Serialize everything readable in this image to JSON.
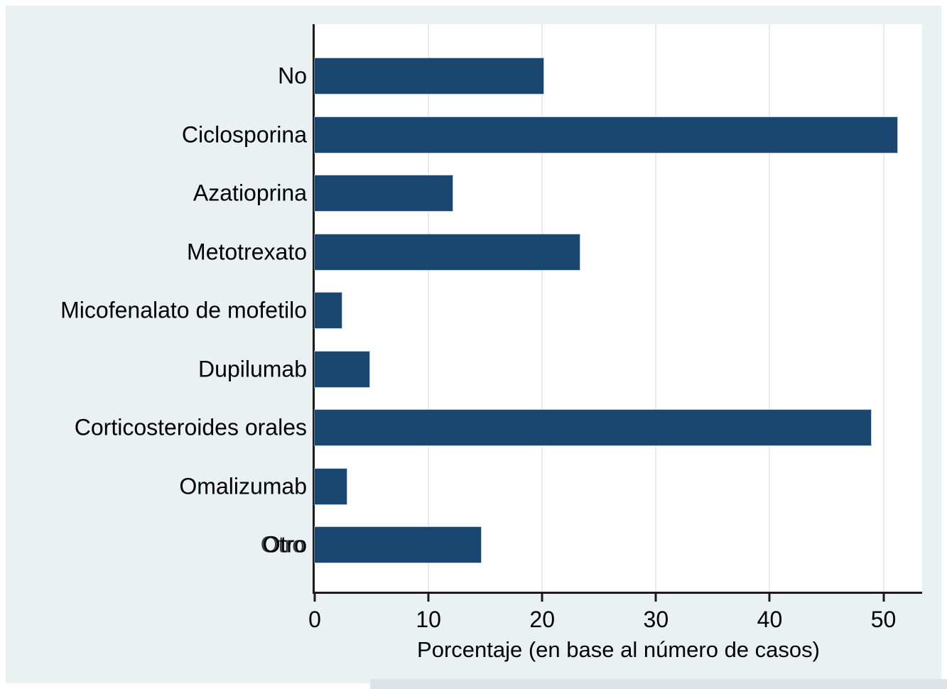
{
  "chart_data": {
    "type": "bar",
    "orientation": "horizontal",
    "title": "",
    "categories": [
      "No",
      "Ciclosporina",
      "Azatioprina",
      "Metotrexato",
      "Micofenalato de mofetilo",
      "Dupilumab",
      "Corticosteroides orales",
      "Omalizumab",
      "Otro"
    ],
    "values": [
      20.1,
      51.2,
      12.1,
      23.3,
      2.4,
      4.8,
      48.9,
      2.8,
      14.6
    ],
    "xlabel": "Porcentaje (en base al número de casos)",
    "ylabel": "",
    "xticks": [
      0,
      10,
      20,
      30,
      40,
      50
    ],
    "xtick_labels": [
      "0",
      "10",
      "20",
      "30",
      "40",
      "50"
    ],
    "xlim": [
      0,
      53.4
    ],
    "grid": true,
    "legend": false,
    "overprint_index": 8,
    "colors": {
      "bar": "#1a476f",
      "canvas_background": "#e9f1f2",
      "plot_background": "#ffffff",
      "gridline": "#e2ecf2",
      "axis": "#1c1c1c",
      "text": "#000000"
    }
  }
}
